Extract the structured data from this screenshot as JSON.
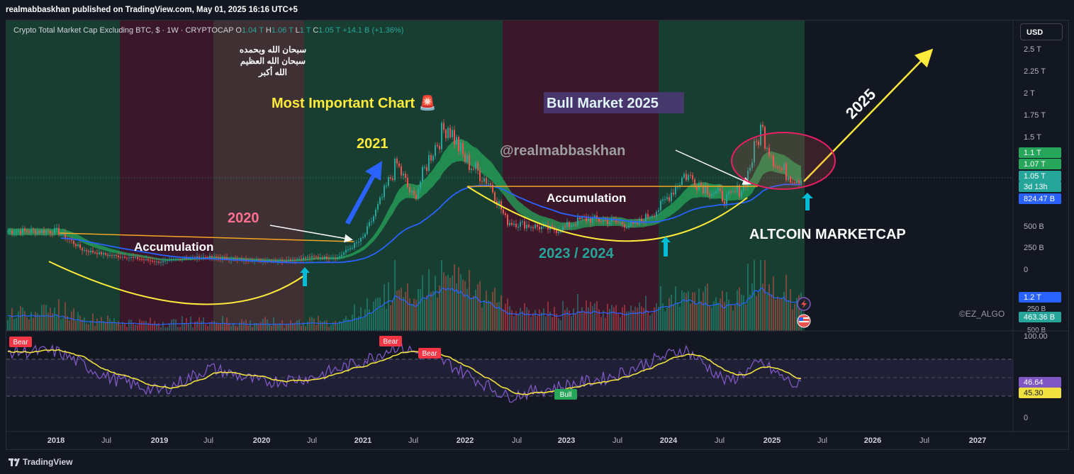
{
  "header": {
    "published": "realmabbaskhan published on TradingView.com, May 01, 2025 16:16 UTC+5"
  },
  "legend": {
    "symbol": "Crypto Total Market Cap Excluding BTC, $ · 1W · CRYPTOCAP",
    "o_label": "O",
    "o_value": "1.04 T",
    "h_label": "H",
    "h_value": "1.06 T",
    "l_label": "L",
    "l_value": "1 T",
    "c_label": "C",
    "c_value": "1.05 T",
    "change": "+14.1 B (+1.36%)"
  },
  "currency_button": "USD",
  "annotations": {
    "arabic_1": "سبحان الله وبحمده",
    "arabic_2": "سبحان الله العظيم",
    "arabic_3": "الله أكبر",
    "most_important": "Most Important Chart 🚨",
    "bull_market": "Bull Market 2025",
    "y2021": "2021",
    "handle": "@realmabbaskhan",
    "y2020": "2020",
    "accumulation_1": "Accumulation",
    "accumulation_2": "Accumulation",
    "y2023_2024": "2023 / 2024",
    "altcoin": "ALTCOIN MARKETCAP",
    "y2025": "2025",
    "credit": "©EZ_ALGO"
  },
  "colors": {
    "up": "#26a69a",
    "down": "#ef5350",
    "accent_yellow": "#ffeb3b",
    "ma_blue": "#2962ff",
    "rsi_purple": "#7e57c2"
  },
  "badges": [
    {
      "text": "1.1 T",
      "color": "#26a65b"
    },
    {
      "text": "1.07 T",
      "color": "#26a65b"
    },
    {
      "text": "1.05 T",
      "color": "#26a69a"
    },
    {
      "text": "3d 13h",
      "color": "#26a69a"
    },
    {
      "text": "824.47 B",
      "color": "#2962ff"
    },
    {
      "text": "1.2 T",
      "color": "#2962ff"
    },
    {
      "text": "463.36 B",
      "color": "#26a69a"
    },
    {
      "text": "46.64",
      "color": "#7e57c2"
    },
    {
      "text": "45.30",
      "color": "#f0e040"
    }
  ],
  "signals": [
    {
      "text": "Bear",
      "color": "#f23645"
    },
    {
      "text": "Bear",
      "color": "#f23645"
    },
    {
      "text": "Bear",
      "color": "#f23645"
    },
    {
      "text": "Bull",
      "color": "#26a65b"
    }
  ],
  "chart_data": {
    "type": "line",
    "title": "Crypto Total Market Cap Excluding BTC",
    "price_axis_ticks": [
      "2.5 T",
      "2.25 T",
      "2 T",
      "1.75 T",
      "1.5 T",
      "500 B",
      "250 B",
      "0"
    ],
    "volume_axis_ticks": [
      "250 B",
      "500 B"
    ],
    "rsi_axis_ticks": [
      "100.00",
      "0"
    ],
    "time_axis_ticks": [
      "2018",
      "Jul",
      "2019",
      "Jul",
      "2020",
      "Jul",
      "2021",
      "Jul",
      "2022",
      "Jul",
      "2023",
      "Jul",
      "2024",
      "Jul",
      "2025",
      "Jul",
      "2026",
      "Jul",
      "2027"
    ],
    "series": [
      {
        "name": "",
        "unit": "T USD",
        "x": [
          "2018-01",
          "2018-04",
          "2018-07",
          "2018-10",
          "2019-01",
          "2019-04",
          "2019-07",
          "2019-10",
          "2020-01",
          "2020-04",
          "2020-07",
          "2020-10",
          "2021-01",
          "2021-03",
          "2021-05",
          "2021-07",
          "2021-09",
          "2021-11",
          "2022-01",
          "2022-04",
          "2022-06",
          "2022-09",
          "2022-12",
          "2023-03",
          "2023-06",
          "2023-09",
          "2023-12",
          "2024-03",
          "2024-06",
          "2024-08",
          "2024-10",
          "2024-12",
          "2025-02",
          "2025-04"
        ],
        "values": [
          0.44,
          0.22,
          0.16,
          0.13,
          0.08,
          0.13,
          0.14,
          0.11,
          0.1,
          0.1,
          0.14,
          0.13,
          0.35,
          0.75,
          1.2,
          0.8,
          1.3,
          1.65,
          1.25,
          0.98,
          0.55,
          0.5,
          0.45,
          0.58,
          0.56,
          0.5,
          0.7,
          1.08,
          0.9,
          0.8,
          0.95,
          1.6,
          1.15,
          1.04
        ]
      }
    ],
    "rsi": {
      "x": [
        "2018-01",
        "2018-07",
        "2019-01",
        "2019-07",
        "2020-01",
        "2020-07",
        "2021-01",
        "2021-05",
        "2021-11",
        "2022-06",
        "2022-12",
        "2023-06",
        "2024-03",
        "2024-08",
        "2024-12",
        "2025-04"
      ],
      "values": [
        82,
        55,
        40,
        65,
        50,
        55,
        72,
        88,
        70,
        35,
        45,
        55,
        85,
        50,
        70,
        46.64
      ],
      "signal_value": 45.3
    }
  }
}
